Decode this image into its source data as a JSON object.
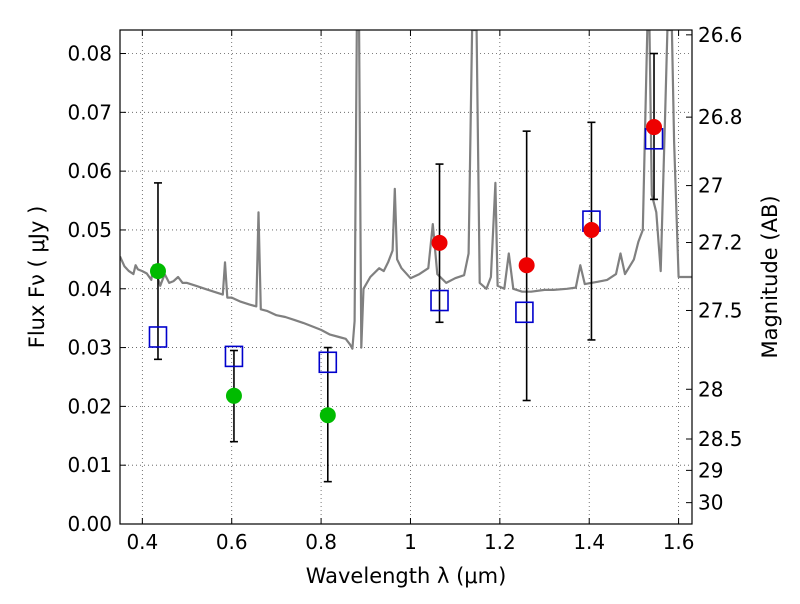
{
  "chart_data": {
    "type": "scatter",
    "xlabel": "Wavelength  λ (μm)",
    "ylabel": "Flux  Fν  ( μJy )",
    "ylabel_right": "Magnitude (AB)",
    "xlim": [
      0.35,
      1.63
    ],
    "ylim": [
      0.0,
      0.084
    ],
    "x_ticks": [
      0.4,
      0.6,
      0.8,
      1.0,
      1.2,
      1.4,
      1.6
    ],
    "x_tick_labels": [
      "0.4",
      "0.6",
      "0.8",
      "1",
      "1.2",
      "1.4",
      "1.6"
    ],
    "y_ticks": [
      0.0,
      0.01,
      0.02,
      0.03,
      0.04,
      0.05,
      0.06,
      0.07,
      0.08
    ],
    "y_tick_labels": [
      "0.00",
      "0.01",
      "0.02",
      "0.03",
      "0.04",
      "0.05",
      "0.06",
      "0.07",
      "0.08"
    ],
    "mag_ticks": [
      "26.6",
      "26.8",
      "27",
      "27.2",
      "27.5",
      "28",
      "28.5",
      "29",
      "30"
    ],
    "grid": true,
    "colors": {
      "model": "#808080",
      "observed_optical": "#00bb00",
      "observed_nir": "#ee0000",
      "model_box": "#0000cc",
      "errorbar": "#000000"
    },
    "model_spectrum": [
      [
        0.35,
        0.0455
      ],
      [
        0.36,
        0.0438
      ],
      [
        0.37,
        0.043
      ],
      [
        0.38,
        0.0425
      ],
      [
        0.385,
        0.044
      ],
      [
        0.39,
        0.0433
      ],
      [
        0.4,
        0.043
      ],
      [
        0.41,
        0.0426
      ],
      [
        0.42,
        0.0415
      ],
      [
        0.425,
        0.044
      ],
      [
        0.43,
        0.043
      ],
      [
        0.44,
        0.0405
      ],
      [
        0.45,
        0.0425
      ],
      [
        0.46,
        0.041
      ],
      [
        0.47,
        0.0413
      ],
      [
        0.48,
        0.042
      ],
      [
        0.49,
        0.041
      ],
      [
        0.5,
        0.041
      ],
      [
        0.52,
        0.0405
      ],
      [
        0.54,
        0.04
      ],
      [
        0.56,
        0.0395
      ],
      [
        0.58,
        0.039
      ],
      [
        0.585,
        0.0445
      ],
      [
        0.59,
        0.0385
      ],
      [
        0.6,
        0.0385
      ],
      [
        0.62,
        0.0378
      ],
      [
        0.64,
        0.0373
      ],
      [
        0.655,
        0.037
      ],
      [
        0.66,
        0.053
      ],
      [
        0.665,
        0.0365
      ],
      [
        0.68,
        0.0362
      ],
      [
        0.7,
        0.0355
      ],
      [
        0.72,
        0.0352
      ],
      [
        0.74,
        0.0347
      ],
      [
        0.76,
        0.0342
      ],
      [
        0.78,
        0.0336
      ],
      [
        0.8,
        0.033
      ],
      [
        0.82,
        0.0322
      ],
      [
        0.84,
        0.0318
      ],
      [
        0.855,
        0.0315
      ],
      [
        0.865,
        0.0305
      ],
      [
        0.87,
        0.0298
      ],
      [
        0.875,
        0.0345
      ],
      [
        0.88,
        0.084
      ],
      [
        0.885,
        0.084
      ],
      [
        0.89,
        0.03
      ],
      [
        0.895,
        0.04
      ],
      [
        0.91,
        0.042
      ],
      [
        0.93,
        0.0435
      ],
      [
        0.94,
        0.043
      ],
      [
        0.95,
        0.0445
      ],
      [
        0.96,
        0.0465
      ],
      [
        0.965,
        0.057
      ],
      [
        0.97,
        0.045
      ],
      [
        0.98,
        0.0435
      ],
      [
        1.0,
        0.0418
      ],
      [
        1.02,
        0.0425
      ],
      [
        1.04,
        0.0435
      ],
      [
        1.05,
        0.051
      ],
      [
        1.06,
        0.0425
      ],
      [
        1.08,
        0.041
      ],
      [
        1.1,
        0.0418
      ],
      [
        1.12,
        0.0423
      ],
      [
        1.13,
        0.046
      ],
      [
        1.138,
        0.084
      ],
      [
        1.148,
        0.084
      ],
      [
        1.155,
        0.041
      ],
      [
        1.17,
        0.04
      ],
      [
        1.18,
        0.042
      ],
      [
        1.19,
        0.058
      ],
      [
        1.195,
        0.0405
      ],
      [
        1.21,
        0.04
      ],
      [
        1.22,
        0.046
      ],
      [
        1.23,
        0.04
      ],
      [
        1.25,
        0.0395
      ],
      [
        1.27,
        0.0395
      ],
      [
        1.3,
        0.0398
      ],
      [
        1.32,
        0.0398
      ],
      [
        1.35,
        0.04
      ],
      [
        1.37,
        0.0402
      ],
      [
        1.38,
        0.044
      ],
      [
        1.39,
        0.0408
      ],
      [
        1.42,
        0.0412
      ],
      [
        1.44,
        0.0415
      ],
      [
        1.46,
        0.0425
      ],
      [
        1.47,
        0.046
      ],
      [
        1.48,
        0.0425
      ],
      [
        1.5,
        0.045
      ],
      [
        1.51,
        0.048
      ],
      [
        1.52,
        0.05
      ],
      [
        1.53,
        0.084
      ],
      [
        1.535,
        0.084
      ],
      [
        1.54,
        0.056
      ],
      [
        1.55,
        0.053
      ],
      [
        1.56,
        0.043
      ],
      [
        1.57,
        0.07
      ],
      [
        1.575,
        0.084
      ],
      [
        1.585,
        0.084
      ],
      [
        1.59,
        0.065
      ],
      [
        1.6,
        0.042
      ],
      [
        1.63,
        0.042
      ]
    ],
    "model_boxes": [
      [
        0.435,
        0.0318
      ],
      [
        0.605,
        0.0285
      ],
      [
        0.815,
        0.0275
      ],
      [
        1.065,
        0.038
      ],
      [
        1.255,
        0.036
      ],
      [
        1.405,
        0.0515
      ],
      [
        1.545,
        0.0655
      ]
    ],
    "observed": [
      {
        "x": 0.435,
        "y": 0.043,
        "err_lo": 0.028,
        "err_hi": 0.058,
        "band": "optical"
      },
      {
        "x": 0.605,
        "y": 0.0218,
        "err_lo": 0.014,
        "err_hi": 0.0295,
        "band": "optical"
      },
      {
        "x": 0.815,
        "y": 0.0185,
        "err_lo": 0.0072,
        "err_hi": 0.03,
        "band": "optical"
      },
      {
        "x": 1.065,
        "y": 0.0478,
        "err_lo": 0.0343,
        "err_hi": 0.0612,
        "band": "nir"
      },
      {
        "x": 1.26,
        "y": 0.044,
        "err_lo": 0.021,
        "err_hi": 0.0668,
        "band": "nir"
      },
      {
        "x": 1.405,
        "y": 0.05,
        "err_lo": 0.0313,
        "err_hi": 0.0683,
        "band": "nir"
      },
      {
        "x": 1.545,
        "y": 0.0675,
        "err_lo": 0.0552,
        "err_hi": 0.08,
        "band": "nir"
      }
    ]
  }
}
